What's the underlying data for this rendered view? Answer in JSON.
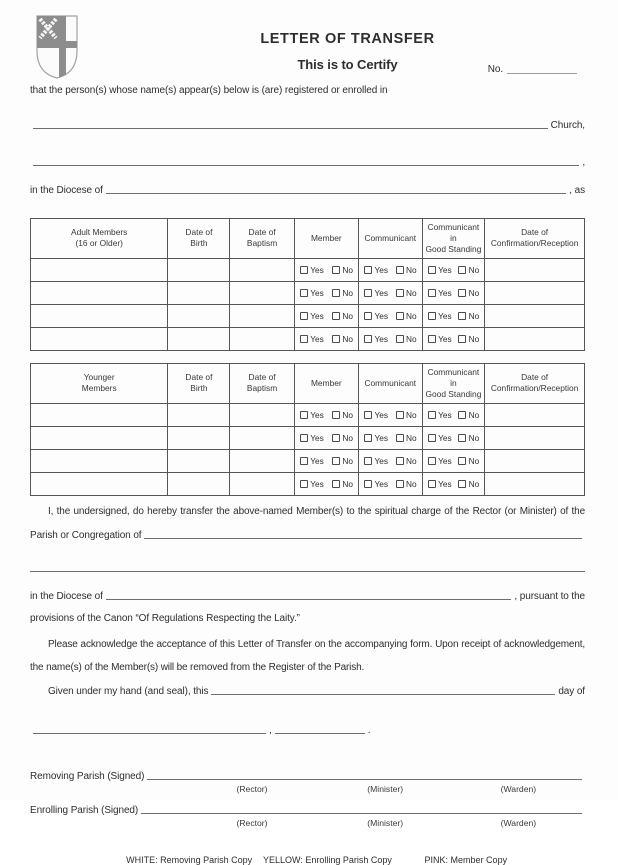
{
  "header": {
    "title": "LETTER OF TRANSFER",
    "certify": "This is to Certify",
    "no_label": "No."
  },
  "intro": {
    "line1": "that the person(s) whose name(s) appear(s) below is (are) registered or enrolled in",
    "church_suffix": "Church,",
    "line2_suffix": ",",
    "diocese_prefix": "in the Diocese of",
    "as_suffix": ", as"
  },
  "tables": {
    "checkbox_yes": "Yes",
    "checkbox_no": "No",
    "row_count": 4,
    "adult": {
      "columns": [
        [
          "Adult Members",
          "(16 or Older)"
        ],
        [
          "Date of",
          "Birth"
        ],
        [
          "Date of",
          "Baptism"
        ],
        [
          "Member"
        ],
        [
          "Communicant"
        ],
        [
          "Communicant in",
          "Good Standing"
        ],
        [
          "Date of",
          "Confirmation/Reception"
        ]
      ]
    },
    "younger": {
      "columns": [
        [
          "Younger",
          "Members"
        ],
        [
          "Date of",
          "Birth"
        ],
        [
          "Date of",
          "Baptism"
        ],
        [
          "Member"
        ],
        [
          "Communicant"
        ],
        [
          "Communicant in",
          "Good Standing"
        ],
        [
          "Date of",
          "Confirmation/Reception"
        ]
      ]
    }
  },
  "body": {
    "transfer_sentence": "I, the undersigned, do hereby transfer the above-named Member(s) to the spiritual charge of the Rector (or Minister) of the",
    "parish_prefix": "Parish or Congregation of",
    "diocese_prefix": "in the Diocese of",
    "pursuant_suffix": ", pursuant to the",
    "provisions_line": "provisions of the Canon “Of Regulations Respecting the Laity.”",
    "acknowledge_para": "Please acknowledge the acceptance of this Letter of Transfer on the accompanying form. Upon receipt of acknowledgement, the name(s) of the Member(s) will be removed from the Register of the Parish.",
    "given_prefix": "Given under my hand (and seal), this",
    "day_of_suffix": "day of",
    "date_comma": ",",
    "date_period": "."
  },
  "signatures": {
    "removing_label": "Removing Parish (Signed)",
    "enrolling_label": "Enrolling Parish (Signed)",
    "roles": [
      "(Rector)",
      "(Minister)",
      "(Warden)"
    ]
  },
  "footer": {
    "copies": [
      "WHITE: Removing Parish Copy",
      "YELLOW: Enrolling Parish Copy",
      "PINK: Member Copy"
    ]
  },
  "colors": {
    "ink": "#2e2e2e",
    "rule": "#6f6f6f",
    "shield_gray": "#8d8d8d"
  }
}
